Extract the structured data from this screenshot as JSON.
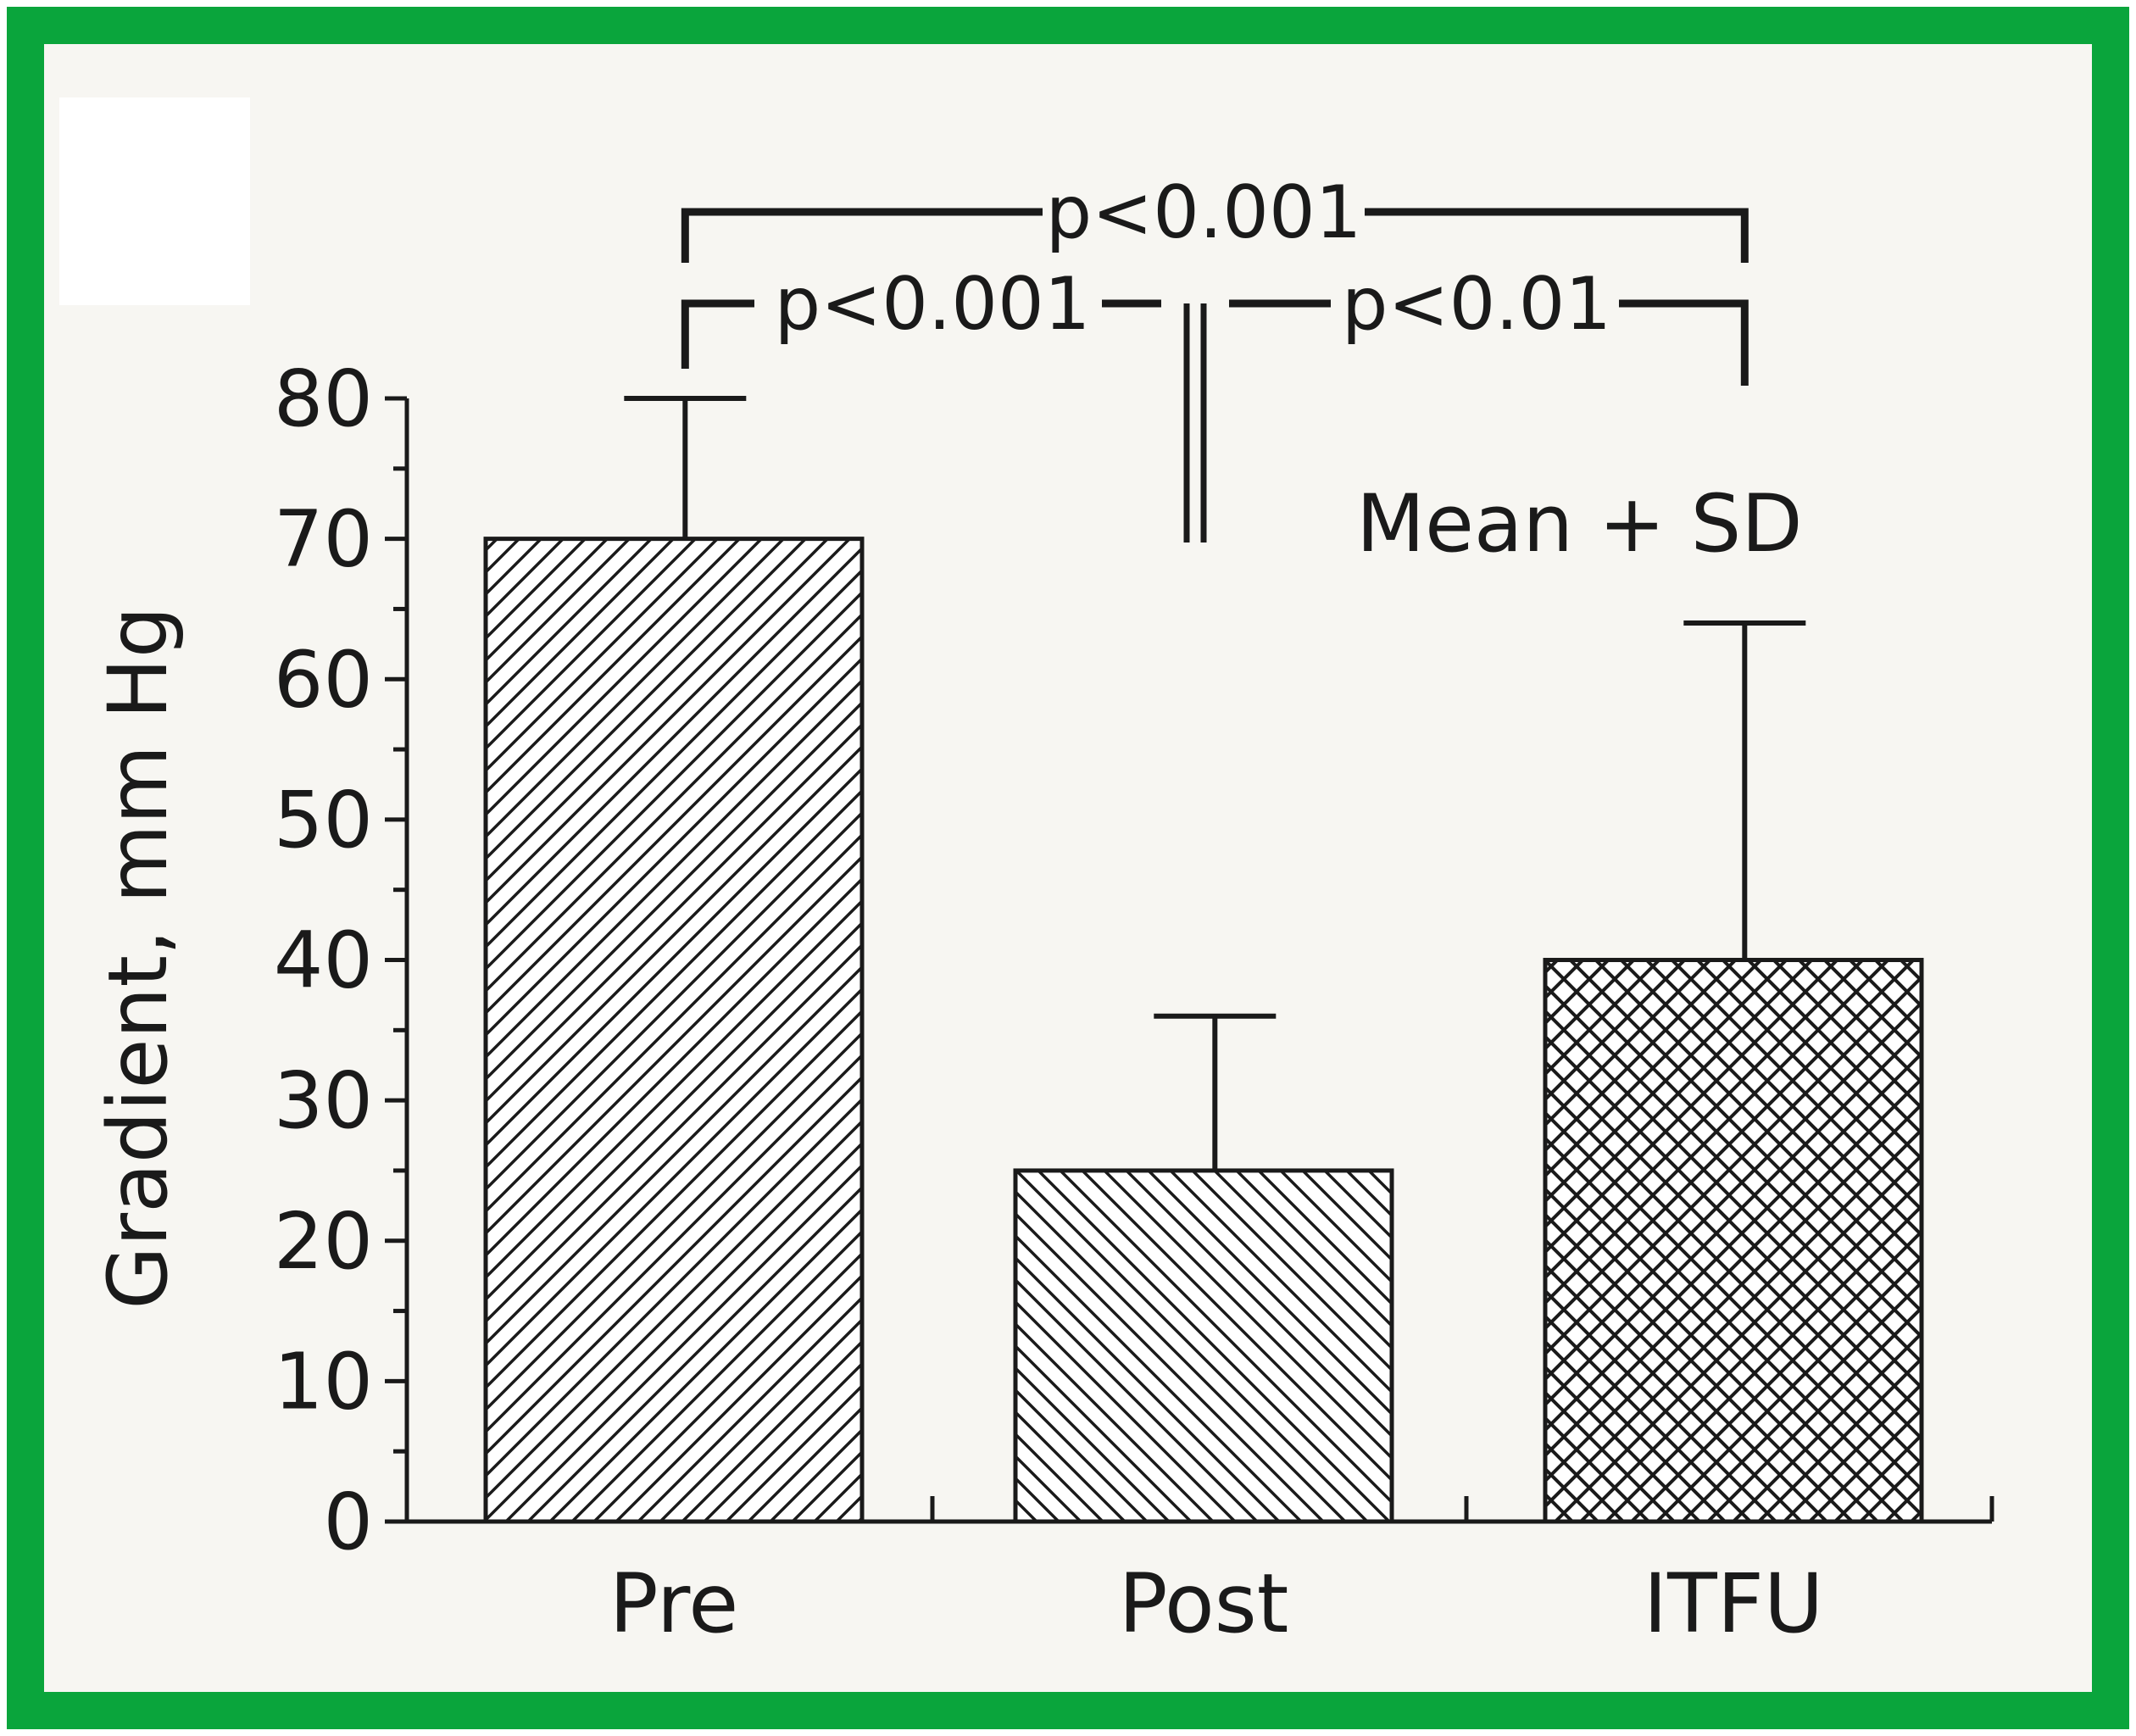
{
  "colors": {
    "border": "#0aa53c",
    "paper": "#f7f6f2",
    "ink": "#1a1a1a"
  },
  "chart_data": {
    "type": "bar",
    "categories": [
      "Pre",
      "Post",
      "ITFU"
    ],
    "values": [
      70,
      25,
      40
    ],
    "errors_plus_sd": [
      10,
      11,
      24
    ],
    "patterns": [
      "diagonal-up",
      "diagonal-down",
      "crosshatch"
    ],
    "ylabel": "Gradient, mm Hg",
    "xlabel": "",
    "ylim": [
      0,
      80
    ],
    "yticks": [
      0,
      10,
      20,
      30,
      40,
      50,
      60,
      70,
      80
    ],
    "legend_text": "Mean + SD",
    "comparisons": [
      {
        "from": "Pre",
        "to": "ITFU",
        "label": "p<0.001"
      },
      {
        "from": "Pre",
        "to": "Post",
        "label": "p<0.001"
      },
      {
        "from": "Post",
        "to": "ITFU",
        "label": "p<0.01"
      }
    ],
    "grid": false
  }
}
